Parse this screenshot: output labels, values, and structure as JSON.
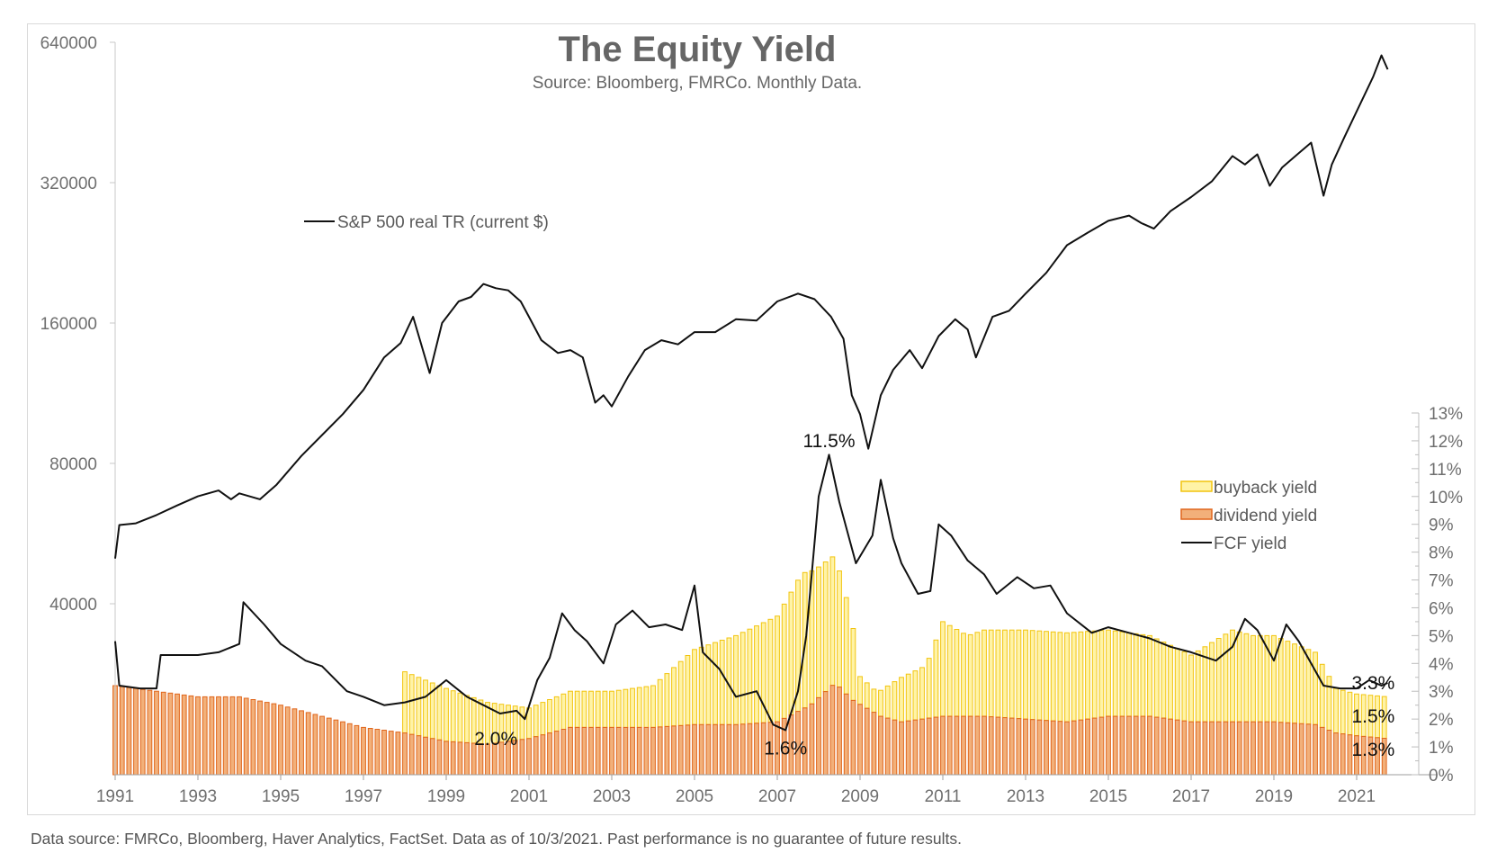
{
  "footer": "Data source: FMRCo, Bloomberg, Haver Analytics, FactSet. Data as of 10/3/2021. Past performance is no guarantee of future results.",
  "chart_data": {
    "type": "line",
    "title": "The Equity Yield",
    "subtitle": "Source: Bloomberg, FMRCo.  Monthly Data.",
    "x_ticks": [
      "1991",
      "1993",
      "1995",
      "1997",
      "1999",
      "2001",
      "2003",
      "2005",
      "2007",
      "2009",
      "2011",
      "2013",
      "2015",
      "2017",
      "2019",
      "2021"
    ],
    "x_range": [
      1991,
      2023
    ],
    "left_axis": {
      "scale": "log2",
      "range": [
        20000,
        640000
      ],
      "ticks": [
        40000,
        80000,
        160000,
        320000,
        640000
      ],
      "tick_labels": [
        "40000",
        "80000",
        "160000",
        "320000",
        "640000"
      ]
    },
    "right_axis": {
      "range": [
        0,
        13
      ],
      "ticks": [
        0,
        1,
        2,
        3,
        4,
        5,
        6,
        7,
        8,
        9,
        10,
        11,
        12,
        13
      ],
      "tick_labels": [
        "0%",
        "1%",
        "2%",
        "3%",
        "4%",
        "5%",
        "6%",
        "7%",
        "8%",
        "9%",
        "10%",
        "11%",
        "12%",
        "13%"
      ]
    },
    "colors": {
      "sp500": "#111111",
      "fcf": "#111111",
      "buyback_fill": "#fff3a6",
      "buyback_stroke": "#f2c40f",
      "dividend_fill": "#f2b07a",
      "dividend_stroke": "#e0661c",
      "label_buyback": "#f0b400",
      "label_dividend": "#e8731e"
    },
    "legend_top": {
      "label": "S&P 500 real TR (current $)"
    },
    "legend_bottom": [
      {
        "label": "buyback yield",
        "kind": "bar-yellow"
      },
      {
        "label": "dividend yield",
        "kind": "bar-orange"
      },
      {
        "label": "FCF yield",
        "kind": "line"
      }
    ],
    "annotations": [
      {
        "text": "11.5%",
        "x": 2008.25,
        "y": 12.0,
        "color": "anno"
      },
      {
        "text": "2.0%",
        "x": 2000.2,
        "y": 1.3,
        "color": "anno"
      },
      {
        "text": "1.6%",
        "x": 2007.2,
        "y": 0.95,
        "color": "anno"
      },
      {
        "text": "3.3%",
        "x": 2021.4,
        "y": 3.3,
        "color": "anno"
      },
      {
        "text": "1.5%",
        "x": 2021.4,
        "y": 2.1,
        "color": "label_buyback"
      },
      {
        "text": "1.3%",
        "x": 2021.4,
        "y": 0.9,
        "color": "label_dividend"
      }
    ],
    "series": [
      {
        "name": "S&P 500 real TR (current $)",
        "axis": "left",
        "points": [
          [
            1991.0,
            50000
          ],
          [
            1991.1,
            59000
          ],
          [
            1991.5,
            59500
          ],
          [
            1992.0,
            62000
          ],
          [
            1992.5,
            65000
          ],
          [
            1993.0,
            68000
          ],
          [
            1993.5,
            70000
          ],
          [
            1993.8,
            67000
          ],
          [
            1994.0,
            69000
          ],
          [
            1994.5,
            67000
          ],
          [
            1994.9,
            72000
          ],
          [
            1995.5,
            83000
          ],
          [
            1996.0,
            92000
          ],
          [
            1996.5,
            102000
          ],
          [
            1997.0,
            115000
          ],
          [
            1997.5,
            135000
          ],
          [
            1997.9,
            145000
          ],
          [
            1998.2,
            165000
          ],
          [
            1998.6,
            125000
          ],
          [
            1998.9,
            160000
          ],
          [
            1999.3,
            178000
          ],
          [
            1999.6,
            182000
          ],
          [
            1999.9,
            194000
          ],
          [
            2000.2,
            190000
          ],
          [
            2000.5,
            188000
          ],
          [
            2000.8,
            178000
          ],
          [
            2001.0,
            165000
          ],
          [
            2001.3,
            147000
          ],
          [
            2001.7,
            138000
          ],
          [
            2002.0,
            140000
          ],
          [
            2002.3,
            135000
          ],
          [
            2002.6,
            108000
          ],
          [
            2002.8,
            112000
          ],
          [
            2003.0,
            106000
          ],
          [
            2003.4,
            123000
          ],
          [
            2003.8,
            140000
          ],
          [
            2004.2,
            147000
          ],
          [
            2004.6,
            144000
          ],
          [
            2005.0,
            153000
          ],
          [
            2005.5,
            153000
          ],
          [
            2006.0,
            163000
          ],
          [
            2006.5,
            162000
          ],
          [
            2007.0,
            178000
          ],
          [
            2007.5,
            185000
          ],
          [
            2007.9,
            180000
          ],
          [
            2008.3,
            165000
          ],
          [
            2008.6,
            148000
          ],
          [
            2008.8,
            112000
          ],
          [
            2009.0,
            102000
          ],
          [
            2009.2,
            86000
          ],
          [
            2009.5,
            112000
          ],
          [
            2009.8,
            127000
          ],
          [
            2010.2,
            140000
          ],
          [
            2010.5,
            128000
          ],
          [
            2010.9,
            150000
          ],
          [
            2011.3,
            163000
          ],
          [
            2011.6,
            155000
          ],
          [
            2011.8,
            135000
          ],
          [
            2012.2,
            165000
          ],
          [
            2012.6,
            170000
          ],
          [
            2013.0,
            185000
          ],
          [
            2013.5,
            205000
          ],
          [
            2014.0,
            235000
          ],
          [
            2014.5,
            250000
          ],
          [
            2015.0,
            265000
          ],
          [
            2015.5,
            272000
          ],
          [
            2015.8,
            262000
          ],
          [
            2016.1,
            255000
          ],
          [
            2016.5,
            278000
          ],
          [
            2017.0,
            298000
          ],
          [
            2017.5,
            322000
          ],
          [
            2018.0,
            365000
          ],
          [
            2018.3,
            350000
          ],
          [
            2018.6,
            368000
          ],
          [
            2018.9,
            315000
          ],
          [
            2019.2,
            345000
          ],
          [
            2019.6,
            370000
          ],
          [
            2019.9,
            390000
          ],
          [
            2020.2,
            300000
          ],
          [
            2020.4,
            350000
          ],
          [
            2020.7,
            400000
          ],
          [
            2021.0,
            455000
          ],
          [
            2021.4,
            540000
          ],
          [
            2021.6,
            600000
          ],
          [
            2021.75,
            560000
          ]
        ]
      },
      {
        "name": "FCF yield",
        "axis": "right",
        "points": [
          [
            1991.0,
            4.8
          ],
          [
            1991.1,
            3.2
          ],
          [
            1991.6,
            3.1
          ],
          [
            1992.0,
            3.1
          ],
          [
            1992.1,
            4.3
          ],
          [
            1993.0,
            4.3
          ],
          [
            1993.5,
            4.4
          ],
          [
            1994.0,
            4.7
          ],
          [
            1994.1,
            6.2
          ],
          [
            1994.6,
            5.4
          ],
          [
            1995.0,
            4.7
          ],
          [
            1995.6,
            4.1
          ],
          [
            1996.0,
            3.9
          ],
          [
            1996.6,
            3.0
          ],
          [
            1997.0,
            2.8
          ],
          [
            1997.5,
            2.5
          ],
          [
            1998.0,
            2.6
          ],
          [
            1998.5,
            2.8
          ],
          [
            1999.0,
            3.4
          ],
          [
            1999.5,
            2.8
          ],
          [
            1999.9,
            2.5
          ],
          [
            2000.3,
            2.2
          ],
          [
            2000.7,
            2.3
          ],
          [
            2000.9,
            2.0
          ],
          [
            2001.2,
            3.4
          ],
          [
            2001.5,
            4.2
          ],
          [
            2001.8,
            5.8
          ],
          [
            2002.1,
            5.2
          ],
          [
            2002.4,
            4.8
          ],
          [
            2002.8,
            4.0
          ],
          [
            2003.1,
            5.4
          ],
          [
            2003.5,
            5.9
          ],
          [
            2003.9,
            5.3
          ],
          [
            2004.3,
            5.4
          ],
          [
            2004.7,
            5.2
          ],
          [
            2005.0,
            6.8
          ],
          [
            2005.2,
            4.4
          ],
          [
            2005.6,
            3.8
          ],
          [
            2006.0,
            2.8
          ],
          [
            2006.5,
            3.0
          ],
          [
            2006.9,
            1.8
          ],
          [
            2007.2,
            1.6
          ],
          [
            2007.5,
            3.0
          ],
          [
            2007.7,
            5.0
          ],
          [
            2008.0,
            10.0
          ],
          [
            2008.25,
            11.5
          ],
          [
            2008.5,
            9.8
          ],
          [
            2008.9,
            7.6
          ],
          [
            2009.3,
            8.6
          ],
          [
            2009.5,
            10.6
          ],
          [
            2009.8,
            8.5
          ],
          [
            2010.0,
            7.6
          ],
          [
            2010.4,
            6.5
          ],
          [
            2010.7,
            6.6
          ],
          [
            2010.9,
            9.0
          ],
          [
            2011.2,
            8.6
          ],
          [
            2011.6,
            7.7
          ],
          [
            2012.0,
            7.2
          ],
          [
            2012.3,
            6.5
          ],
          [
            2012.8,
            7.1
          ],
          [
            2013.2,
            6.7
          ],
          [
            2013.6,
            6.8
          ],
          [
            2014.0,
            5.8
          ],
          [
            2014.6,
            5.1
          ],
          [
            2015.0,
            5.3
          ],
          [
            2015.5,
            5.1
          ],
          [
            2016.0,
            4.9
          ],
          [
            2016.5,
            4.6
          ],
          [
            2017.0,
            4.4
          ],
          [
            2017.6,
            4.1
          ],
          [
            2018.0,
            4.6
          ],
          [
            2018.3,
            5.6
          ],
          [
            2018.6,
            5.2
          ],
          [
            2019.0,
            4.1
          ],
          [
            2019.3,
            5.4
          ],
          [
            2019.6,
            4.8
          ],
          [
            2019.9,
            4.0
          ],
          [
            2020.2,
            3.2
          ],
          [
            2020.6,
            3.1
          ],
          [
            2021.0,
            3.1
          ],
          [
            2021.3,
            3.4
          ],
          [
            2021.6,
            3.2
          ],
          [
            2021.75,
            3.3
          ]
        ]
      },
      {
        "name": "buyback yield",
        "axis": "right",
        "kind": "bar",
        "stacked_on": "dividend yield",
        "points": [
          [
            1998.0,
            2.2
          ],
          [
            1999.0,
            1.9
          ],
          [
            2000.0,
            1.5
          ],
          [
            2001.0,
            1.1
          ],
          [
            2002.0,
            1.3
          ],
          [
            2003.0,
            1.3
          ],
          [
            2004.0,
            1.5
          ],
          [
            2005.0,
            2.7
          ],
          [
            2006.0,
            3.2
          ],
          [
            2007.0,
            3.8
          ],
          [
            2007.6,
            4.9
          ],
          [
            2008.0,
            4.7
          ],
          [
            2008.4,
            4.6
          ],
          [
            2008.8,
            2.9
          ],
          [
            2009.0,
            1.0
          ],
          [
            2009.4,
            0.8
          ],
          [
            2010.0,
            1.6
          ],
          [
            2010.6,
            1.9
          ],
          [
            2011.0,
            3.4
          ],
          [
            2011.6,
            2.9
          ],
          [
            2012.0,
            3.1
          ],
          [
            2013.0,
            3.2
          ],
          [
            2014.0,
            3.2
          ],
          [
            2015.0,
            3.1
          ],
          [
            2016.0,
            2.9
          ],
          [
            2017.0,
            2.4
          ],
          [
            2018.0,
            3.3
          ],
          [
            2018.5,
            3.1
          ],
          [
            2019.0,
            3.1
          ],
          [
            2020.0,
            2.6
          ],
          [
            2020.5,
            1.6
          ],
          [
            2021.0,
            1.5
          ],
          [
            2021.75,
            1.5
          ]
        ]
      },
      {
        "name": "dividend yield",
        "axis": "right",
        "kind": "bar",
        "points": [
          [
            1991.0,
            3.2
          ],
          [
            1992.0,
            3.0
          ],
          [
            1993.0,
            2.8
          ],
          [
            1994.0,
            2.8
          ],
          [
            1995.0,
            2.5
          ],
          [
            1996.0,
            2.1
          ],
          [
            1997.0,
            1.7
          ],
          [
            1998.0,
            1.5
          ],
          [
            1999.0,
            1.2
          ],
          [
            2000.0,
            1.1
          ],
          [
            2001.0,
            1.3
          ],
          [
            2002.0,
            1.7
          ],
          [
            2003.0,
            1.7
          ],
          [
            2004.0,
            1.7
          ],
          [
            2005.0,
            1.8
          ],
          [
            2006.0,
            1.8
          ],
          [
            2007.0,
            1.9
          ],
          [
            2007.8,
            2.5
          ],
          [
            2008.4,
            3.3
          ],
          [
            2008.8,
            2.7
          ],
          [
            2009.5,
            2.1
          ],
          [
            2010.0,
            1.9
          ],
          [
            2011.0,
            2.1
          ],
          [
            2012.0,
            2.1
          ],
          [
            2013.0,
            2.0
          ],
          [
            2014.0,
            1.9
          ],
          [
            2015.0,
            2.1
          ],
          [
            2016.0,
            2.1
          ],
          [
            2017.0,
            1.9
          ],
          [
            2018.0,
            1.9
          ],
          [
            2019.0,
            1.9
          ],
          [
            2020.0,
            1.8
          ],
          [
            2020.5,
            1.5
          ],
          [
            2021.0,
            1.4
          ],
          [
            2021.75,
            1.3
          ]
        ]
      }
    ]
  }
}
